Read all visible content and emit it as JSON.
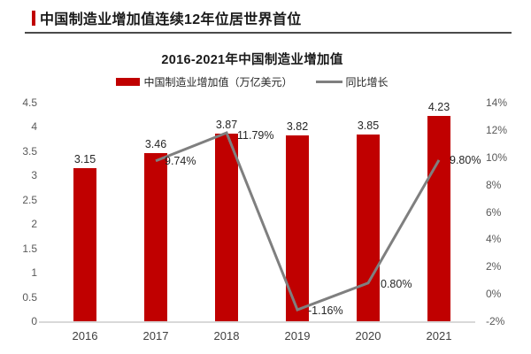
{
  "header": {
    "title": "中国制造业增加值连续12年位居世界首位"
  },
  "chart": {
    "title": "2016-2021年中国制造业增加值",
    "legend": [
      {
        "label": "中国制造业增加值（万亿美元）"
      },
      {
        "label": "同比增长"
      }
    ]
  },
  "colors": {
    "bar": "#C00000",
    "line": "#7F7F7F",
    "accent": "#C00000",
    "axis_line": "#D9D9D9"
  },
  "chart_data": {
    "type": "bar",
    "title": "2016-2021年中国制造业增加值",
    "categories": [
      "2016",
      "2017",
      "2018",
      "2019",
      "2020",
      "2021"
    ],
    "series": [
      {
        "name": "中国制造业增加值（万亿美元）",
        "type": "bar",
        "axis": "left",
        "color": "#C00000",
        "values": [
          3.15,
          3.46,
          3.87,
          3.82,
          3.85,
          4.23
        ],
        "labels": [
          "3.15",
          "3.46",
          "3.87",
          "3.82",
          "3.85",
          "4.23"
        ]
      },
      {
        "name": "同比增长",
        "type": "line",
        "axis": "right",
        "color": "#7F7F7F",
        "values": [
          null,
          9.74,
          11.79,
          -1.16,
          0.8,
          9.8
        ],
        "labels": [
          null,
          "9.74%",
          "11.79%",
          "-1.16%",
          "0.80%",
          "9.80%"
        ]
      }
    ],
    "left_axis": {
      "min": 0,
      "max": 4.5,
      "ticks": [
        "0",
        "0.5",
        "1",
        "1.5",
        "2",
        "2.5",
        "3",
        "3.5",
        "4",
        "4.5"
      ]
    },
    "right_axis": {
      "min": -2,
      "max": 14,
      "ticks": [
        "-2%",
        "0%",
        "2%",
        "4%",
        "6%",
        "8%",
        "10%",
        "12%",
        "14%"
      ]
    },
    "grid": false,
    "legend_position": "top",
    "xlabel": "",
    "ylabel": ""
  }
}
